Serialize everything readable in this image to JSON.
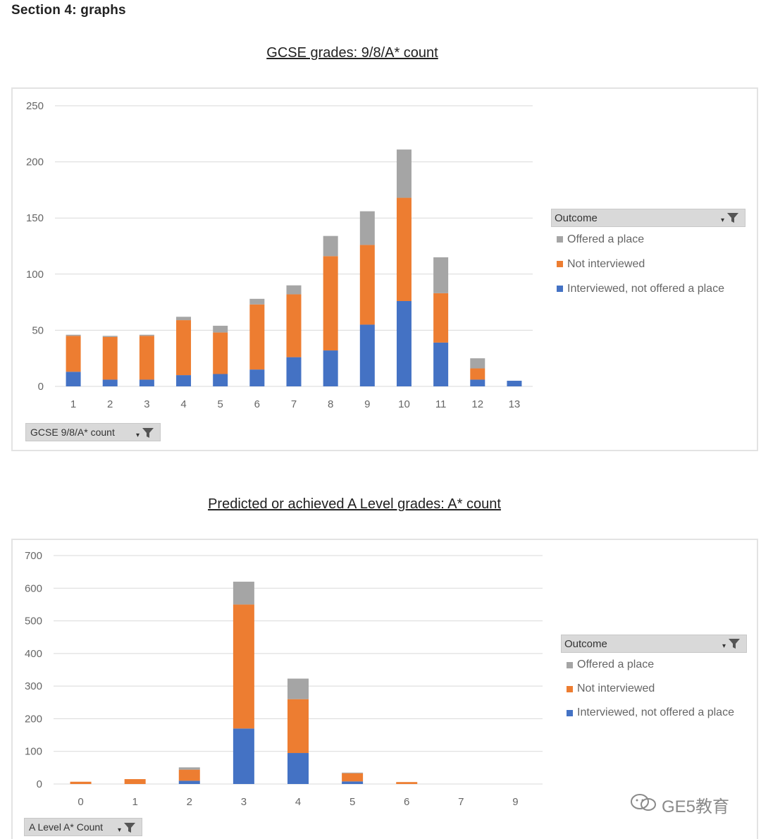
{
  "section_heading": "Section 4: graphs",
  "colors": {
    "offered": "#a5a5a5",
    "not_interviewed": "#ed7d31",
    "interviewed_not_offered": "#4472c4",
    "grid": "#d9d9d9"
  },
  "chart_data": [
    {
      "type": "bar",
      "stacked": true,
      "title": "GCSE grades: 9/8/A* count",
      "axis_field_button": "GCSE 9/8/A* count",
      "legend_title": "Outcome",
      "legend_placement": "right",
      "categories": [
        "1",
        "2",
        "3",
        "4",
        "5",
        "6",
        "7",
        "8",
        "9",
        "10",
        "11",
        "12",
        "13"
      ],
      "ylim": [
        0,
        250
      ],
      "yticks": [
        0,
        50,
        100,
        150,
        200,
        250
      ],
      "grid": true,
      "series": [
        {
          "name": "Interviewed, not offered a place",
          "color_key": "interviewed_not_offered",
          "values": [
            13,
            6,
            6,
            10,
            11,
            15,
            26,
            32,
            55,
            76,
            39,
            6,
            5
          ]
        },
        {
          "name": "Not interviewed",
          "color_key": "not_interviewed",
          "values": [
            32,
            38,
            39,
            49,
            37,
            58,
            56,
            84,
            71,
            92,
            44,
            10,
            0
          ]
        },
        {
          "name": "Offered a place",
          "color_key": "offered",
          "values": [
            1,
            1,
            1,
            3,
            6,
            5,
            8,
            18,
            30,
            43,
            32,
            9,
            0
          ]
        }
      ]
    },
    {
      "type": "bar",
      "stacked": true,
      "title": "Predicted or achieved A Level grades: A* count",
      "axis_field_button": "A Level A* Count",
      "legend_title": "Outcome",
      "legend_placement": "right",
      "categories": [
        "0",
        "1",
        "2",
        "3",
        "4",
        "5",
        "6",
        "7",
        "9"
      ],
      "ylim": [
        0,
        700
      ],
      "yticks": [
        0,
        100,
        200,
        300,
        400,
        500,
        600,
        700
      ],
      "grid": true,
      "series": [
        {
          "name": "Interviewed, not offered a place",
          "color_key": "interviewed_not_offered",
          "values": [
            0,
            0,
            10,
            170,
            95,
            8,
            0,
            0,
            0
          ]
        },
        {
          "name": "Not interviewed",
          "color_key": "not_interviewed",
          "values": [
            7,
            15,
            34,
            380,
            165,
            25,
            6,
            0,
            0
          ]
        },
        {
          "name": "Offered a place",
          "color_key": "offered",
          "values": [
            0,
            0,
            7,
            70,
            63,
            2,
            0,
            0,
            0
          ]
        }
      ]
    }
  ],
  "legend_order": [
    "offered",
    "not_interviewed",
    "interviewed_not_offered"
  ],
  "watermark": "GE5教育",
  "icons": {
    "filter": "filter-dropdown-icon",
    "watermark": "wechat-icon"
  }
}
